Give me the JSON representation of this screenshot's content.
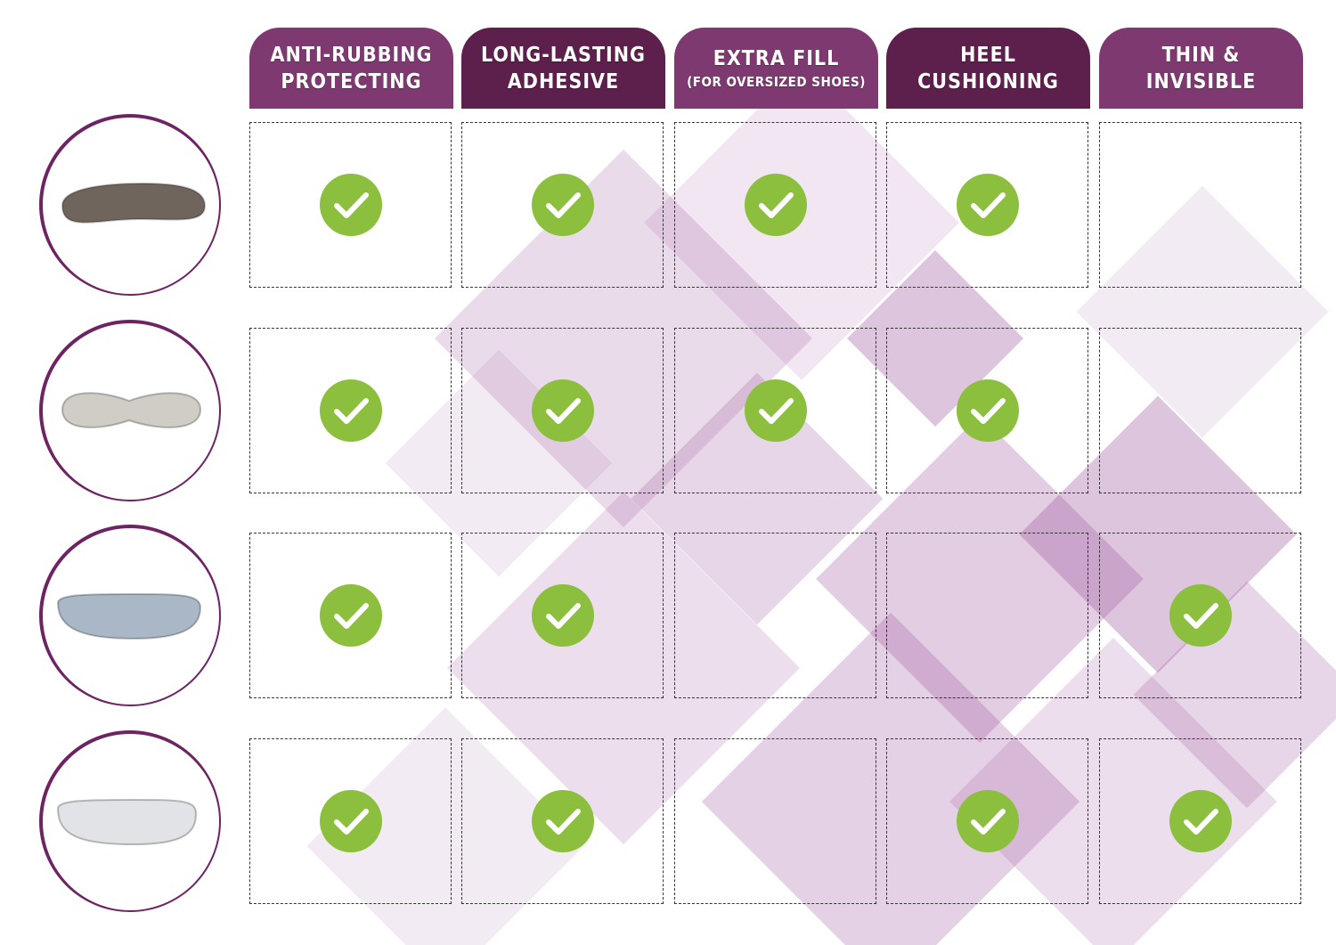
{
  "colors": {
    "header_light": "#7e3a70",
    "header_dark": "#5d1f4b",
    "check": "#8cbf3e",
    "ring": "#6e2363"
  },
  "columns": [
    {
      "line1": "ANTI-RUBBING",
      "line2": "PROTECTING",
      "shade": "light"
    },
    {
      "line1": "LONG-LASTING",
      "line2": "ADHESIVE",
      "shade": "dark"
    },
    {
      "line1": "EXTRA FILL",
      "line2": "(FOR OVERSIZED SHOES)",
      "shade": "light"
    },
    {
      "line1": "HEEL",
      "line2": "CUSHIONING",
      "shade": "dark"
    },
    {
      "line1": "THIN &",
      "line2": "INVISIBLE",
      "shade": "light"
    }
  ],
  "rows": [
    {
      "product": "brown fabric heel pad",
      "color": "#6f655c",
      "features": [
        true,
        true,
        true,
        true,
        false
      ]
    },
    {
      "product": "grey cushioned heel pad",
      "color": "#cfcdc6",
      "features": [
        true,
        true,
        true,
        true,
        false
      ]
    },
    {
      "product": "light blue heel pad",
      "color": "#a9b7c6",
      "features": [
        true,
        true,
        false,
        false,
        true
      ]
    },
    {
      "product": "white leather heel pad",
      "color": "#e2e3e6",
      "features": [
        true,
        true,
        false,
        true,
        true
      ]
    }
  ],
  "icons": {
    "check": "check-circle-icon"
  }
}
